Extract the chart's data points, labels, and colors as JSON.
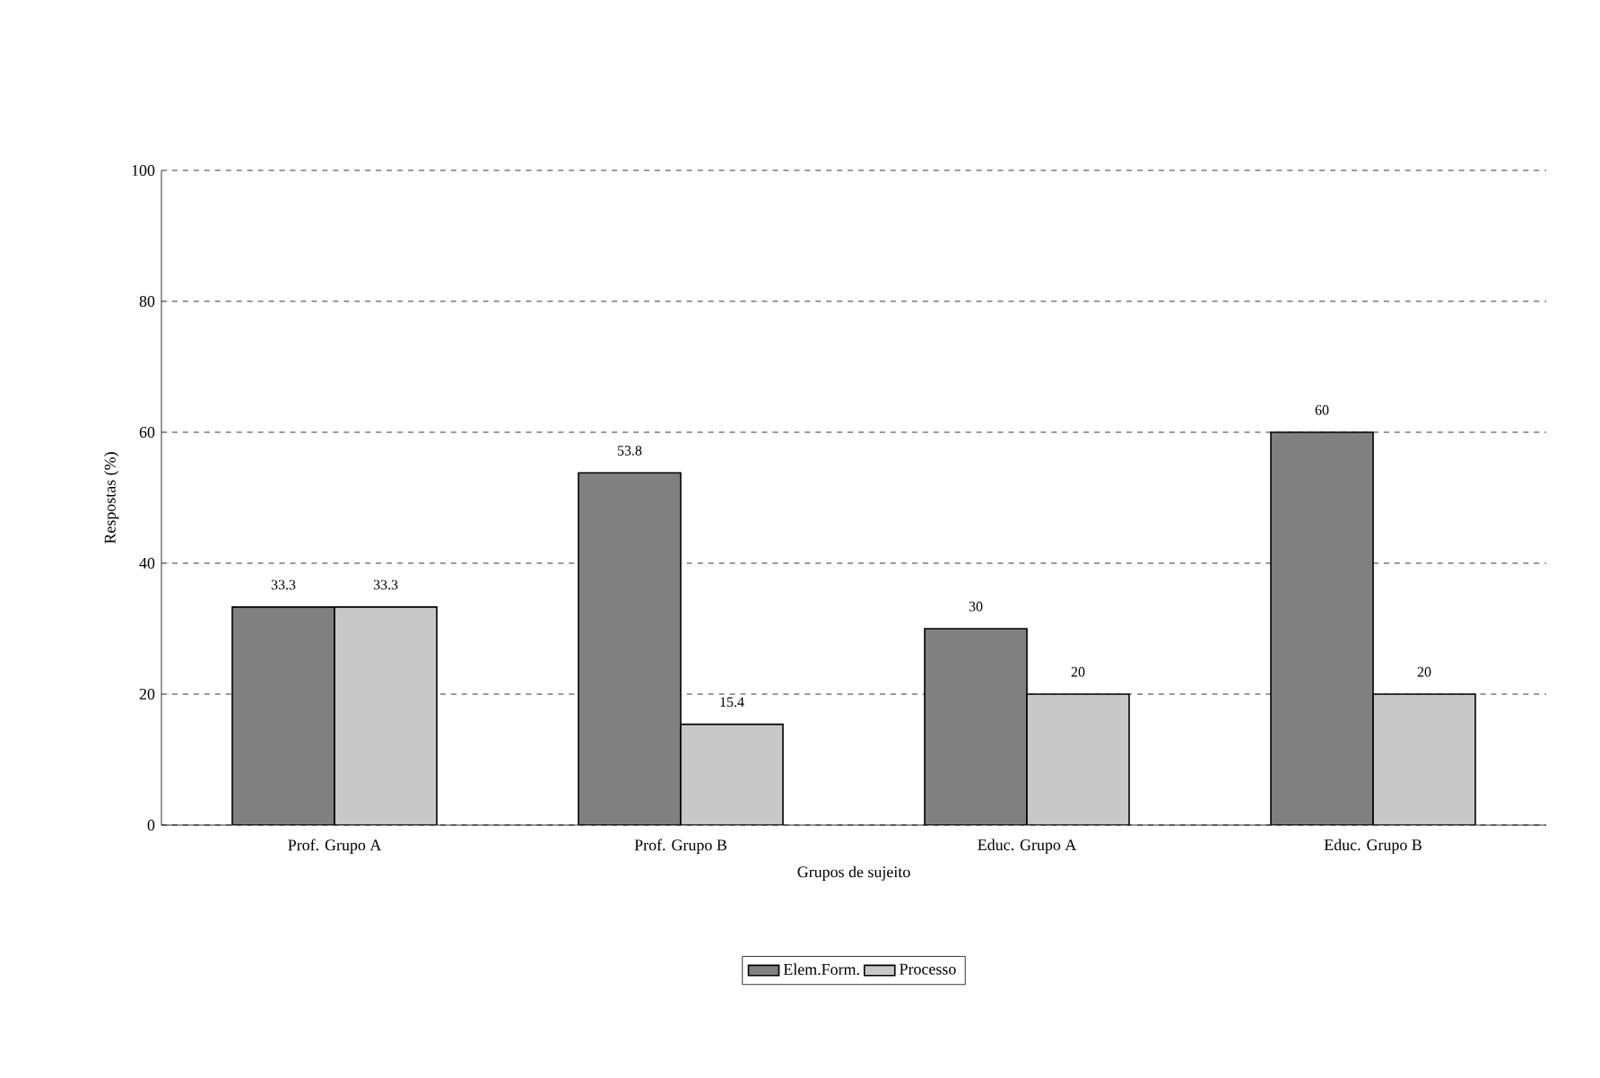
{
  "chart_data": {
    "type": "bar",
    "xlabel": "Grupos de sujeito",
    "ylabel": "Respostas (%)",
    "categories": [
      "Prof. Grupo A",
      "Prof. Grupo B",
      "Educ. Grupo A",
      "Educ. Grupo B"
    ],
    "series": [
      {
        "name": "Elem.Form.",
        "color": "#808080",
        "values": [
          33.3,
          53.8,
          30,
          60
        ]
      },
      {
        "name": "Processo",
        "color": "#c8c8c8",
        "values": [
          33.3,
          15.4,
          20,
          20
        ]
      }
    ],
    "ylim": [
      0,
      100
    ],
    "yticks": [
      0,
      20,
      40,
      60,
      80,
      100
    ],
    "grid": "y",
    "legend": "bottom",
    "data_labels": true
  }
}
